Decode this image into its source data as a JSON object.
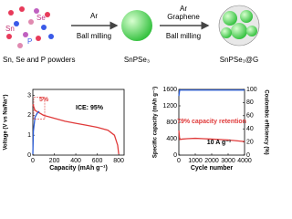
{
  "schematic": {
    "elements": [
      "Sn",
      "Se",
      "P"
    ],
    "caption": "Sn, Se and P powders",
    "step1_gas": "Ar",
    "step1_process": "Ball milling",
    "product1": "SnPSe₃",
    "step2_gas": "Ar",
    "step2_additive": "Graphene",
    "step2_process": "Ball milling",
    "product2": "SnPSe₃@G"
  },
  "chart_data": [
    {
      "type": "line",
      "xlabel": "Capacity (mAh g⁻¹)",
      "ylabel": "Voltage (V vs Na/Na⁺)",
      "xlim": [
        0,
        850
      ],
      "xticks": [
        0,
        200,
        400,
        600,
        800
      ],
      "ylim": [
        0,
        3.3
      ],
      "yticks": [
        0,
        1,
        2,
        3
      ],
      "annotations": [
        {
          "text": "ICE: 95%",
          "color": "#000000"
        },
        {
          "text": "5%",
          "color": "#e03a3a"
        }
      ],
      "series": [
        {
          "color": "#e03a3a",
          "x": [
            0,
            20,
            100,
            200,
            300,
            400,
            500,
            600,
            700,
            760,
            790,
            800
          ],
          "values": [
            2.55,
            2.25,
            2.0,
            1.85,
            1.7,
            1.6,
            1.5,
            1.4,
            1.25,
            1.0,
            0.5,
            0.05
          ]
        },
        {
          "color": "#2a5cd6",
          "x": [
            0,
            5,
            20,
            40,
            60
          ],
          "values": [
            0.05,
            1.2,
            1.9,
            2.1,
            2.2
          ]
        }
      ]
    },
    {
      "type": "line",
      "xlabel": "Cycle number",
      "ylabel": "Specific capacity (mAh g⁻¹)",
      "y2label": "Coulombic efficiency (%)",
      "xlim": [
        0,
        4000
      ],
      "xticks": [
        0,
        1000,
        2000,
        3000,
        4000
      ],
      "ylim": [
        0,
        1600
      ],
      "yticks": [
        0,
        400,
        800,
        1200,
        1600
      ],
      "y2lim": [
        0,
        100
      ],
      "y2ticks": [
        0,
        20,
        40,
        60,
        80,
        100
      ],
      "annotations": [
        {
          "text": "79% capacity retention",
          "color": "#e03a3a"
        },
        {
          "text": "10 A g⁻¹",
          "color": "#000000"
        }
      ],
      "series": [
        {
          "color": "#e03a3a",
          "x": [
            1,
            50,
            200,
            500,
            1000,
            1500,
            2000,
            2500,
            3000,
            3500,
            4000
          ],
          "values": [
            600,
            380,
            390,
            400,
            410,
            400,
            390,
            380,
            370,
            350,
            330
          ]
        },
        {
          "color": "#2a5cd6",
          "axis": "y2",
          "x": [
            1,
            50,
            200,
            500,
            1000,
            1500,
            2000,
            2500,
            3000,
            3500,
            4000
          ],
          "values": [
            90,
            99,
            99,
            99,
            99,
            99,
            99,
            99,
            99,
            99,
            99
          ]
        }
      ]
    }
  ]
}
